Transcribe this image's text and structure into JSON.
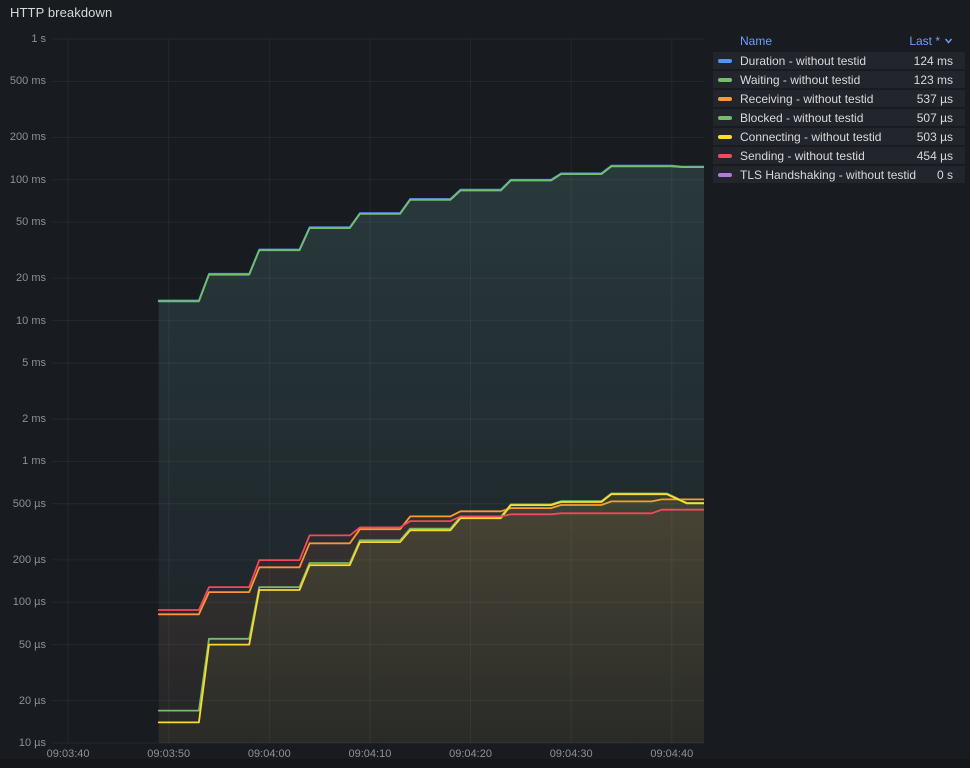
{
  "panel": {
    "title": "HTTP breakdown"
  },
  "legend": {
    "name_header": "Name",
    "value_header": "Last *"
  },
  "colors": {
    "background": "#181b1f",
    "grid": "rgba(204,204,220,0.07)",
    "tick_text": "rgba(204,204,220,0.65)",
    "title_text": "#d8d9da",
    "legend_header": "#6e9fff",
    "legend_row_bg": "#22252b",
    "legend_text": "#d8d9da"
  },
  "chart_data": {
    "type": "line",
    "title": "HTTP breakdown",
    "grid": true,
    "legend_position": "right-table",
    "x_axis": {
      "unit": "time",
      "tick_labels": [
        "09:03:40",
        "09:03:50",
        "09:04:00",
        "09:04:10",
        "09:04:20",
        "09:04:30",
        "09:04:40"
      ],
      "tick_seconds": [
        0,
        10,
        20,
        30,
        40,
        50,
        60
      ],
      "range_seconds": [
        -1.6,
        63.2
      ]
    },
    "y_axis": {
      "scale": "log10",
      "unit": "seconds-duration",
      "range_us": [
        10,
        1000000
      ],
      "ticks": [
        {
          "label": "1 s",
          "us": 1000000
        },
        {
          "label": "500 ms",
          "us": 500000
        },
        {
          "label": "200 ms",
          "us": 200000
        },
        {
          "label": "100 ms",
          "us": 100000
        },
        {
          "label": "50 ms",
          "us": 50000
        },
        {
          "label": "20 ms",
          "us": 20000
        },
        {
          "label": "10 ms",
          "us": 10000
        },
        {
          "label": "5 ms",
          "us": 5000
        },
        {
          "label": "2 ms",
          "us": 2000
        },
        {
          "label": "1 ms",
          "us": 1000
        },
        {
          "label": "500 µs",
          "us": 500
        },
        {
          "label": "200 µs",
          "us": 200
        },
        {
          "label": "100 µs",
          "us": 100
        },
        {
          "label": "50 µs",
          "us": 50
        },
        {
          "label": "20 µs",
          "us": 20
        },
        {
          "label": "10 µs",
          "us": 10
        }
      ]
    },
    "series": [
      {
        "name": "Duration - without testid",
        "color": "#5794F2",
        "last": "124 ms",
        "points": [
          [
            9,
            13900
          ],
          [
            13,
            13900
          ],
          [
            14,
            21500
          ],
          [
            18,
            21500
          ],
          [
            19,
            32000
          ],
          [
            23,
            32000
          ],
          [
            24,
            46000
          ],
          [
            28,
            46000
          ],
          [
            29,
            58000
          ],
          [
            33,
            58000
          ],
          [
            34,
            73000
          ],
          [
            38,
            73000
          ],
          [
            39,
            85000
          ],
          [
            43,
            85000
          ],
          [
            44,
            100000
          ],
          [
            48,
            100000
          ],
          [
            49,
            111000
          ],
          [
            53,
            111000
          ],
          [
            54,
            126000
          ],
          [
            60,
            126000
          ],
          [
            61,
            124000
          ],
          [
            63.2,
            124000
          ]
        ]
      },
      {
        "name": "Waiting - without testid",
        "color": "#73BF69",
        "last": "123 ms",
        "points": [
          [
            9,
            13700
          ],
          [
            13,
            13700
          ],
          [
            14,
            21200
          ],
          [
            18,
            21200
          ],
          [
            19,
            31600
          ],
          [
            23,
            31600
          ],
          [
            24,
            45400
          ],
          [
            28,
            45400
          ],
          [
            29,
            57300
          ],
          [
            33,
            57300
          ],
          [
            34,
            72100
          ],
          [
            38,
            72100
          ],
          [
            39,
            84000
          ],
          [
            43,
            84000
          ],
          [
            44,
            98800
          ],
          [
            48,
            98800
          ],
          [
            49,
            109700
          ],
          [
            53,
            109700
          ],
          [
            54,
            124500
          ],
          [
            60,
            124500
          ],
          [
            61,
            123000
          ],
          [
            63.2,
            123000
          ]
        ]
      },
      {
        "name": "Receiving - without testid",
        "color": "#FF9830",
        "last": "537 µs",
        "points": [
          [
            9,
            82
          ],
          [
            13,
            82
          ],
          [
            14,
            118
          ],
          [
            18,
            118
          ],
          [
            19,
            177
          ],
          [
            23,
            177
          ],
          [
            24,
            262
          ],
          [
            28,
            262
          ],
          [
            29,
            330
          ],
          [
            33,
            330
          ],
          [
            34,
            407
          ],
          [
            38,
            407
          ],
          [
            39,
            442
          ],
          [
            43,
            442
          ],
          [
            44,
            466
          ],
          [
            48,
            466
          ],
          [
            49,
            490
          ],
          [
            53,
            490
          ],
          [
            54,
            520
          ],
          [
            58,
            520
          ],
          [
            59,
            537
          ],
          [
            63.2,
            537
          ]
        ]
      },
      {
        "name": "Blocked - without testid",
        "color": "#73BF69",
        "last": "507 µs",
        "points": [
          [
            9,
            17
          ],
          [
            13,
            17
          ],
          [
            14,
            55
          ],
          [
            18,
            55
          ],
          [
            19,
            128
          ],
          [
            23,
            128
          ],
          [
            24,
            190
          ],
          [
            28,
            190
          ],
          [
            29,
            275
          ],
          [
            33,
            275
          ],
          [
            34,
            333
          ],
          [
            38,
            333
          ],
          [
            39,
            405
          ],
          [
            43,
            405
          ],
          [
            44,
            495
          ],
          [
            48,
            495
          ],
          [
            49,
            522
          ],
          [
            53,
            522
          ],
          [
            54,
            592
          ],
          [
            59.5,
            592
          ],
          [
            61.5,
            507
          ],
          [
            63.2,
            507
          ]
        ]
      },
      {
        "name": "Connecting - without testid",
        "color": "#FADE2A",
        "last": "503 µs",
        "points": [
          [
            9,
            14
          ],
          [
            13,
            14
          ],
          [
            14,
            50
          ],
          [
            18,
            50
          ],
          [
            19,
            122
          ],
          [
            23,
            122
          ],
          [
            24,
            183
          ],
          [
            28,
            183
          ],
          [
            29,
            267
          ],
          [
            33,
            267
          ],
          [
            34,
            324
          ],
          [
            38,
            324
          ],
          [
            39,
            395
          ],
          [
            43,
            395
          ],
          [
            44,
            489
          ],
          [
            48,
            489
          ],
          [
            49,
            515
          ],
          [
            53,
            515
          ],
          [
            54,
            585
          ],
          [
            59.5,
            585
          ],
          [
            61.5,
            503
          ],
          [
            63.2,
            503
          ]
        ]
      },
      {
        "name": "Sending - without testid",
        "color": "#F2495C",
        "last": "454 µs",
        "points": [
          [
            9,
            88
          ],
          [
            13,
            88
          ],
          [
            14,
            128
          ],
          [
            18,
            128
          ],
          [
            19,
            199
          ],
          [
            23,
            199
          ],
          [
            24,
            298
          ],
          [
            28,
            298
          ],
          [
            29,
            340
          ],
          [
            33,
            340
          ],
          [
            34,
            377
          ],
          [
            38,
            377
          ],
          [
            39,
            407
          ],
          [
            43,
            407
          ],
          [
            44,
            421
          ],
          [
            48,
            421
          ],
          [
            49,
            428
          ],
          [
            58,
            428
          ],
          [
            59,
            454
          ],
          [
            63.2,
            454
          ]
        ]
      },
      {
        "name": "TLS Handshaking - without testid",
        "color": "#B877D9",
        "last": "0 s",
        "points": []
      }
    ]
  }
}
